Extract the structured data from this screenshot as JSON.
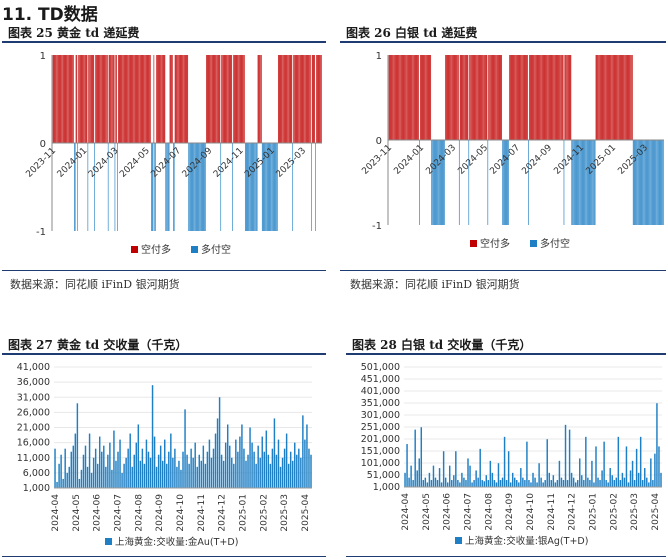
{
  "section_title": "11. TD数据",
  "source_text": "数据来源：同花顺 iFinD    银河期货",
  "figures": [
    {
      "title": "图表 25   黄金 td 递延费"
    },
    {
      "title": "图表 26 白银 td 递延费"
    },
    {
      "title": "图表 27   黄金 td 交收量（千克）"
    },
    {
      "title": "图表 28 白银 td 交收量（千克）"
    }
  ],
  "colors": {
    "red": "#c00000",
    "blue": "#1f7fc4",
    "rule": "#1f3c72"
  },
  "chart_data": [
    {
      "type": "bar",
      "title": "",
      "ylim": [
        -1,
        1
      ],
      "yticks": [
        1,
        0,
        -1
      ],
      "xticks": [
        "2023-11",
        "2024-01",
        "2024-03",
        "2024-05",
        "2024-07",
        "2024-09",
        "2024-11",
        "2025-01",
        "2025-03"
      ],
      "legend": {
        "position": "bottom",
        "items": [
          "空付多",
          "多付空"
        ]
      },
      "pattern": "1111111111111111111111111100110111111111110111111101111111111111110111111101101111111111111111111111111111111111111110001001111111111100000111100111111111111111100000000000000000000011111111111111111011111111111110111111111111110000000000000001111100000000000000000001111111111111111101111111111111111111110111101111111"
    },
    {
      "type": "bar",
      "title": "",
      "ylim": [
        -1,
        1
      ],
      "yticks": [
        1,
        0,
        -1
      ],
      "xticks": [
        "2023-11",
        "2024-01",
        "2024-03",
        "2024-05",
        "2024-07",
        "2024-09",
        "2024-11",
        "2025-01",
        "2025-03"
      ],
      "legend": {
        "position": "bottom",
        "items": [
          "空付多",
          "多付空"
        ]
      },
      "pattern": "1111111111111111111111111111111111110111111111111100000000000000001111111111111111011111111110111111111111111111111011111111111111110000000011111111111111111111110111111111111111111111111111111111111111101111111100000000000000000000000000001111111111111111111111111111111111111111111000000000000000000000000000000000000"
    },
    {
      "type": "bar",
      "title": "",
      "series_name": "上海黄金:交收量:金Au(T+D)",
      "ylim": [
        1000,
        41000
      ],
      "yticks": [
        "1,000",
        "6,000",
        "11,000",
        "16,000",
        "21,000",
        "26,000",
        "31,000",
        "36,000",
        "41,000"
      ],
      "ytick_values": [
        1000,
        6000,
        11000,
        16000,
        21000,
        26000,
        31000,
        36000,
        41000
      ],
      "xticks": [
        "2024-04",
        "2024-05",
        "2024-06",
        "2024-07",
        "2024-08",
        "2024-09",
        "2024-10",
        "2024-11",
        "2024-12",
        "2025-01",
        "2025-02",
        "2025-03",
        "2025-04"
      ],
      "legend": {
        "position": "bottom"
      },
      "values": [
        14000,
        3000,
        9000,
        12000,
        4000,
        14000,
        6000,
        8000,
        13000,
        15000,
        19000,
        29000,
        4000,
        7000,
        12000,
        15000,
        8000,
        19000,
        6000,
        11000,
        14000,
        9000,
        18000,
        13000,
        15000,
        8000,
        12000,
        16000,
        7000,
        20000,
        10000,
        13000,
        17000,
        6000,
        9000,
        11000,
        14000,
        19000,
        8000,
        12000,
        16000,
        22000,
        10000,
        14000,
        9000,
        17000,
        13000,
        11000,
        35000,
        18000,
        8000,
        12000,
        15000,
        10000,
        17000,
        9000,
        13000,
        19000,
        11000,
        14000,
        8000,
        10000,
        7000,
        13000,
        27000,
        12000,
        9000,
        14000,
        11000,
        16000,
        8000,
        12000,
        10000,
        15000,
        9000,
        13000,
        17000,
        11000,
        14000,
        19000,
        24000,
        31000,
        12000,
        10000,
        16000,
        22000,
        15000,
        11000,
        9000,
        17000,
        13000,
        18000,
        22000,
        14000,
        10000,
        12000,
        21000,
        16000,
        13000,
        9000,
        15000,
        11000,
        18000,
        13000,
        20000,
        12000,
        9000,
        14000,
        24000,
        12000,
        17000,
        8000,
        11000,
        14000,
        19000,
        9000,
        13000,
        10000,
        16000,
        12000,
        14000,
        11000,
        25000,
        17000,
        22000,
        14000,
        12000
      ],
      "xlabel": "",
      "ylabel": ""
    },
    {
      "type": "bar",
      "title": "",
      "series_name": "上海黄金:交收量:银Ag(T+D)",
      "ylim": [
        1000,
        501000
      ],
      "yticks": [
        "1,000",
        "51,000",
        "101,000",
        "151,000",
        "201,000",
        "251,000",
        "301,000",
        "351,000",
        "401,000",
        "451,000",
        "501,000"
      ],
      "ytick_values": [
        1000,
        51000,
        101000,
        151000,
        201000,
        251000,
        301000,
        351000,
        401000,
        451000,
        501000
      ],
      "xticks": [
        "2024-04",
        "2024-05",
        "2024-06",
        "2024-07",
        "2024-08",
        "2024-09",
        "2024-10",
        "2024-11",
        "2024-12",
        "2025-01",
        "2025-02",
        "2025-03",
        "2025-04"
      ],
      "legend": {
        "position": "bottom"
      },
      "values": [
        60000,
        180000,
        40000,
        90000,
        30000,
        240000,
        70000,
        120000,
        250000,
        30000,
        40000,
        20000,
        60000,
        30000,
        90000,
        40000,
        30000,
        80000,
        20000,
        150000,
        40000,
        20000,
        90000,
        30000,
        50000,
        150000,
        30000,
        20000,
        60000,
        40000,
        30000,
        120000,
        90000,
        20000,
        30000,
        70000,
        40000,
        160000,
        30000,
        25000,
        50000,
        30000,
        110000,
        60000,
        30000,
        20000,
        100000,
        30000,
        40000,
        210000,
        30000,
        150000,
        20000,
        60000,
        40000,
        30000,
        20000,
        80000,
        40000,
        30000,
        190000,
        30000,
        20000,
        60000,
        40000,
        20000,
        100000,
        40000,
        20000,
        30000,
        200000,
        60000,
        30000,
        50000,
        20000,
        30000,
        110000,
        40000,
        30000,
        260000,
        30000,
        240000,
        60000,
        40000,
        20000,
        30000,
        120000,
        50000,
        30000,
        210000,
        40000,
        30000,
        110000,
        20000,
        170000,
        40000,
        30000,
        70000,
        190000,
        30000,
        20000,
        80000,
        50000,
        30000,
        40000,
        210000,
        30000,
        60000,
        40000,
        170000,
        20000,
        70000,
        110000,
        30000,
        160000,
        60000,
        210000,
        30000,
        80000,
        40000,
        20000,
        120000,
        30000,
        140000,
        350000,
        170000,
        60000
      ],
      "xlabel": "",
      "ylabel": ""
    }
  ]
}
